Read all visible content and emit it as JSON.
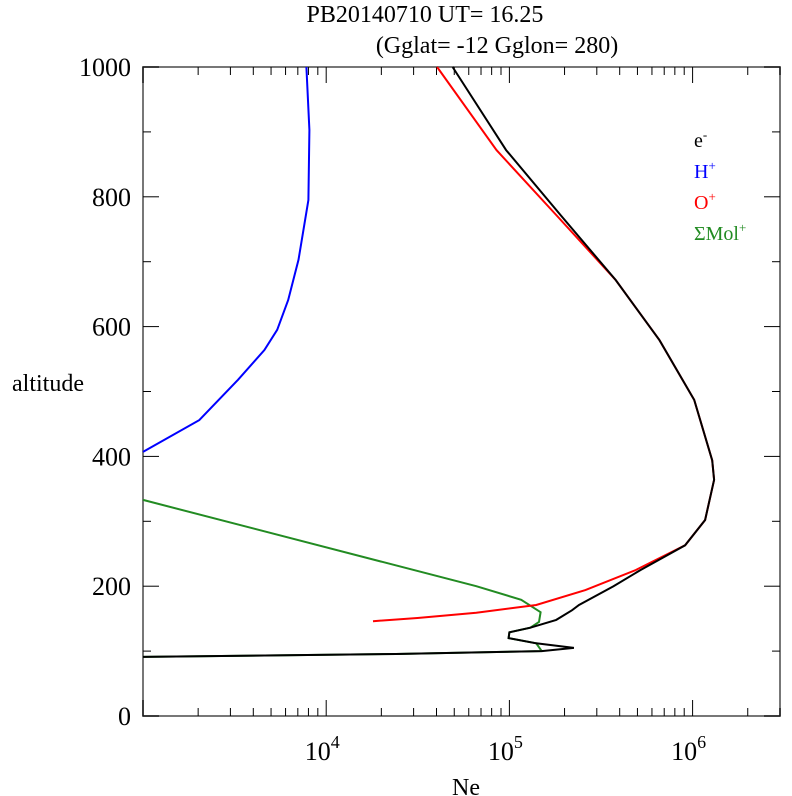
{
  "chart_data": {
    "type": "line",
    "title": "PB20140710   UT=  16.25",
    "subtitle": "(Gglat= -12   Gglon=  280)",
    "xlabel": "Ne",
    "ylabel": "altitude",
    "xscale": "log",
    "xlim": [
      1000,
      3000000
    ],
    "ylim": [
      0,
      1000
    ],
    "xticks": [
      {
        "value": 10000,
        "base": "10",
        "exp": "4"
      },
      {
        "value": 100000,
        "base": "10",
        "exp": "5"
      },
      {
        "value": 1000000,
        "base": "10",
        "exp": "6"
      }
    ],
    "yticks": [
      0,
      200,
      400,
      600,
      800,
      1000
    ],
    "legend_position": "top-right",
    "series": [
      {
        "name": "e-",
        "label": "e",
        "sup": "-",
        "color": "#000000",
        "points": [
          [
            49000,
            1000
          ],
          [
            96000,
            872
          ],
          [
            190000,
            772
          ],
          [
            380000,
            672
          ],
          [
            660000,
            579
          ],
          [
            1020000,
            487
          ],
          [
            1280000,
            394
          ],
          [
            1310000,
            364
          ],
          [
            1170000,
            302
          ],
          [
            910000,
            263
          ],
          [
            520000,
            225
          ],
          [
            370000,
            200
          ],
          [
            240000,
            171
          ],
          [
            220000,
            163
          ],
          [
            180000,
            148
          ],
          [
            130000,
            136
          ],
          [
            100000,
            129
          ],
          [
            99000,
            120
          ],
          [
            140000,
            112
          ],
          [
            225000,
            105
          ],
          [
            150000,
            100
          ],
          [
            24000,
            95.5
          ],
          [
            1000,
            91
          ]
        ]
      },
      {
        "name": "H+",
        "label": "H",
        "sup": "+",
        "color": "#0000ff",
        "points": [
          [
            7800,
            1000
          ],
          [
            8100,
            903
          ],
          [
            8000,
            795
          ],
          [
            7060,
            703
          ],
          [
            6200,
            641
          ],
          [
            5400,
            595
          ],
          [
            4600,
            564
          ],
          [
            3300,
            518
          ],
          [
            2030,
            456
          ],
          [
            1000,
            407
          ]
        ]
      },
      {
        "name": "O+",
        "label": "O",
        "sup": "+",
        "color": "#ff0000",
        "points": [
          [
            40300,
            1000
          ],
          [
            85000,
            872
          ],
          [
            180000,
            772
          ],
          [
            380000,
            672
          ],
          [
            660000,
            579
          ],
          [
            1020000,
            487
          ],
          [
            1280000,
            394
          ],
          [
            1310000,
            364
          ],
          [
            1170000,
            302
          ],
          [
            910000,
            263
          ],
          [
            490000,
            225
          ],
          [
            260000,
            194
          ],
          [
            140000,
            171
          ],
          [
            66000,
            159
          ],
          [
            31500,
            151
          ],
          [
            18000,
            146
          ]
        ]
      },
      {
        "name": "ΣMol+",
        "label": "ΣMol",
        "sup": "+",
        "color": "#228b22",
        "points": [
          [
            1000,
            333
          ],
          [
            66000,
            200
          ],
          [
            116000,
            179
          ],
          [
            148000,
            160
          ],
          [
            145000,
            145
          ],
          [
            130000,
            136
          ],
          [
            100000,
            129
          ],
          [
            99000,
            120
          ],
          [
            140000,
            112
          ],
          [
            150000,
            100
          ],
          [
            24000,
            95.5
          ],
          [
            1000,
            91
          ]
        ]
      }
    ]
  }
}
